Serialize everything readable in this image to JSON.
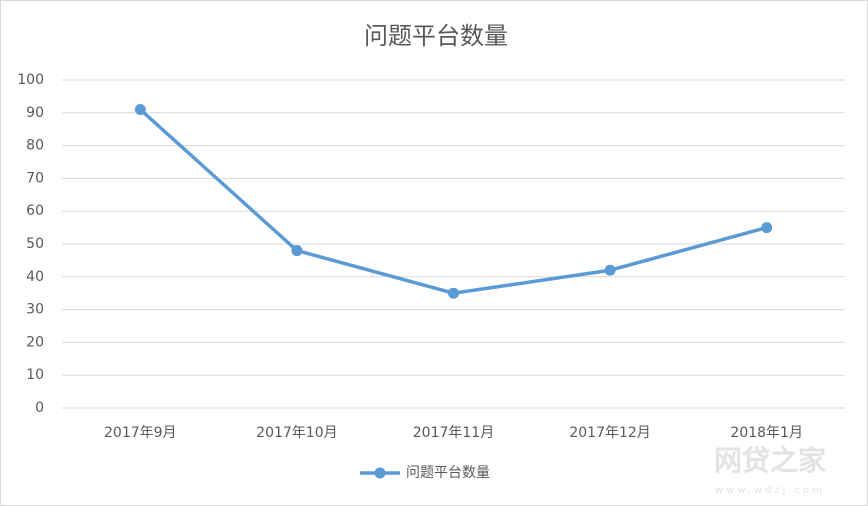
{
  "chart_data": {
    "type": "line",
    "title": "问题平台数量",
    "categories": [
      "2017年9月",
      "2017年10月",
      "2017年11月",
      "2017年12月",
      "2018年1月"
    ],
    "series": [
      {
        "name": "问题平台数量",
        "color": "#5b9bd5",
        "values": [
          91,
          48,
          35,
          42,
          55
        ]
      }
    ],
    "ylim": [
      0,
      100
    ],
    "yticks": [
      0,
      10,
      20,
      30,
      40,
      50,
      60,
      70,
      80,
      90,
      100
    ],
    "grid": true,
    "legend": "bottom",
    "watermark": {
      "title": "网贷之家",
      "url": "www.wdzj.com"
    }
  }
}
